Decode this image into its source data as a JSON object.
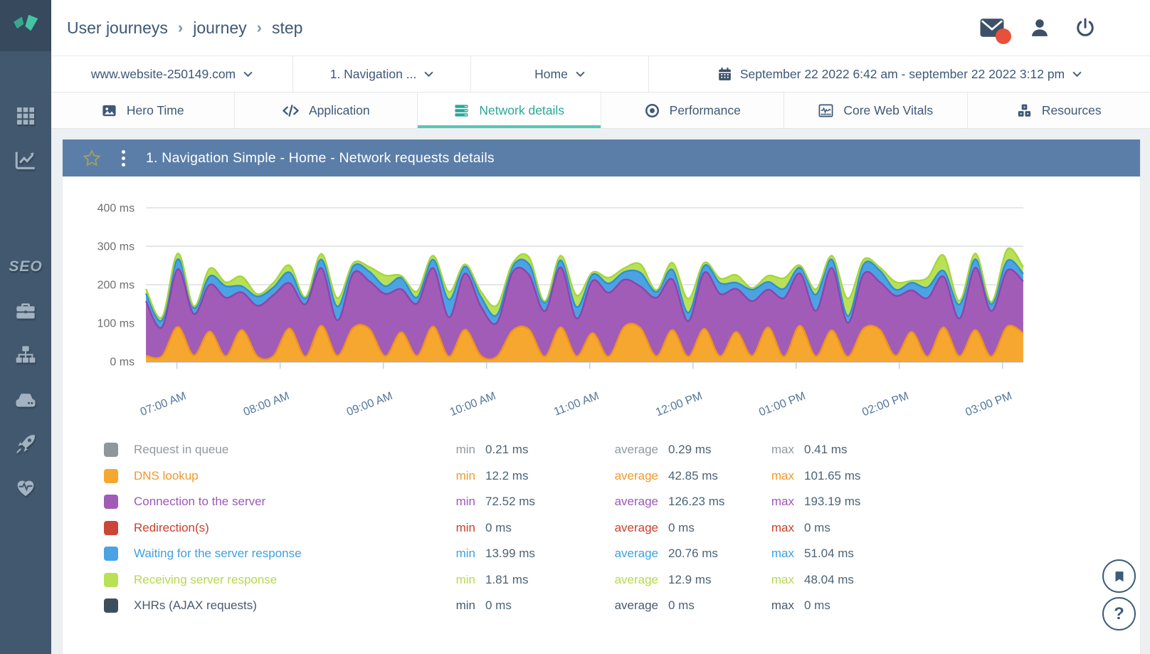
{
  "breadcrumb": {
    "items": [
      "User journeys",
      "journey",
      "step"
    ],
    "separator": "›"
  },
  "sidebar": {
    "seo_label": "SEO"
  },
  "filters": {
    "website": "www.website-250149.com",
    "journey": "1. Navigation ...",
    "step": "Home",
    "daterange": "September 22 2022 6:42 am - september 22 2022 3:12 pm"
  },
  "tabs": [
    {
      "label": "Hero Time",
      "active": false
    },
    {
      "label": "Application",
      "active": false
    },
    {
      "label": "Network details",
      "active": true
    },
    {
      "label": "Performance",
      "active": false
    },
    {
      "label": "Core Web Vitals",
      "active": false
    },
    {
      "label": "Resources",
      "active": false
    }
  ],
  "panel": {
    "title": "1. Navigation Simple - Home - Network requests details"
  },
  "chart_data": {
    "type": "area",
    "stacked": true,
    "title": "Network requests details",
    "y_unit": "ms",
    "ylim": [
      0,
      400
    ],
    "y_ticks": [
      0,
      100,
      200,
      300,
      400
    ],
    "x_range_minutes": [
      0,
      510
    ],
    "x_tick_minutes": [
      18,
      78,
      138,
      198,
      258,
      318,
      378,
      438,
      498
    ],
    "x_ticks": [
      "07:00 AM",
      "08:00 AM",
      "09:00 AM",
      "10:00 AM",
      "11:00 AM",
      "12:00 PM",
      "01:00 PM",
      "02:00 PM",
      "03:00 PM"
    ],
    "grid": true,
    "legend_position": "bottom",
    "series": [
      {
        "name": "Request in queue",
        "color": "#8d979c",
        "stroke": "#7e8a90",
        "values": 0.3
      },
      {
        "name": "DNS lookup",
        "color": "#f6a72f",
        "stroke": "#ef9418",
        "values": [
          15,
          14,
          90,
          16,
          78,
          14,
          82,
          13,
          15,
          86,
          13,
          93,
          15,
          88,
          85,
          14,
          76,
          15,
          91,
          13,
          83,
          15,
          13,
          81,
          84,
          13,
          89,
          14,
          74,
          13,
          91,
          87,
          14,
          82,
          13,
          85,
          14,
          77,
          15,
          89,
          13,
          93,
          14,
          81,
          13,
          86,
          83,
          15,
          77,
          13,
          89,
          14,
          82,
          13,
          91,
          74
        ]
      },
      {
        "name": "Connection to the server",
        "color": "#a15cb7",
        "stroke": "#8f43ab",
        "values": [
          142,
          75,
          150,
          108,
          122,
          152,
          98,
          132,
          158,
          118,
          136,
          150,
          92,
          142,
          124,
          162,
          112,
          136,
          152,
          102,
          146,
          128,
          88,
          152,
          142,
          118,
          156,
          98,
          136,
          166,
          122,
          108,
          152,
          132,
          92,
          146,
          162,
          112,
          142,
          98,
          152,
          136,
          118,
          162,
          88,
          142,
          124,
          156,
          108,
          152,
          132,
          98,
          162,
          118,
          146,
          134
        ]
      },
      {
        "name": "Redirection(s)",
        "color": "#cb4538",
        "stroke": "#b93a2e",
        "values": 0
      },
      {
        "name": "Waiting for the server response",
        "color": "#4ba3e3",
        "stroke": "#2e8fd5",
        "values": [
          20,
          18,
          26,
          15,
          22,
          30,
          16,
          24,
          20,
          28,
          15,
          22,
          36,
          18,
          25,
          20,
          30,
          16,
          22,
          46,
          18,
          25,
          20,
          15,
          28,
          22,
          18,
          30,
          16,
          24,
          20,
          36,
          15,
          25,
          22,
          18,
          28,
          16,
          30,
          20,
          24,
          15,
          42,
          22,
          18,
          25,
          30,
          16,
          20,
          28,
          15,
          36,
          22,
          18,
          25,
          20
        ]
      },
      {
        "name": "Receiving server response",
        "color": "#b9e156",
        "stroke": "#a5d63e",
        "values": [
          12,
          8,
          15,
          5,
          20,
          10,
          25,
          6,
          12,
          18,
          4,
          15,
          22,
          8,
          12,
          28,
          5,
          16,
          10,
          20,
          6,
          14,
          25,
          8,
          18,
          4,
          12,
          30,
          6,
          15,
          10,
          22,
          5,
          18,
          36,
          8,
          12,
          20,
          4,
          16,
          28,
          6,
          14,
          10,
          45,
          12,
          8,
          20,
          5,
          25,
          40,
          10,
          15,
          6,
          30,
          18
        ]
      },
      {
        "name": "XHRs (AJAX requests)",
        "color": "#3e4e5c",
        "stroke": "#32404c",
        "values": 0
      }
    ]
  },
  "legend": {
    "stat_labels": {
      "min": "min",
      "average": "average",
      "max": "max"
    },
    "rows": [
      {
        "label": "Request in queue",
        "swatch": "#8d979c",
        "label_color": "#90999e",
        "min": "0.21 ms",
        "average": "0.29 ms",
        "max": "0.41 ms"
      },
      {
        "label": "DNS lookup",
        "swatch": "#f6a72f",
        "label_color": "#f0992b",
        "min": "12.2 ms",
        "average": "42.85 ms",
        "max": "101.65 ms"
      },
      {
        "label": "Connection to the server",
        "swatch": "#a15cb7",
        "label_color": "#9c59b8",
        "min": "72.52 ms",
        "average": "126.23 ms",
        "max": "193.19 ms"
      },
      {
        "label": "Redirection(s)",
        "swatch": "#cb4538",
        "label_color": "#c8402f",
        "min": "0 ms",
        "average": "0 ms",
        "max": "0 ms"
      },
      {
        "label": "Waiting for the server response",
        "swatch": "#4ba3e3",
        "label_color": "#3da0e3",
        "min": "13.99 ms",
        "average": "20.76 ms",
        "max": "51.04 ms"
      },
      {
        "label": "Receiving server response",
        "swatch": "#b9e156",
        "label_color": "#b5d94e",
        "min": "1.81 ms",
        "average": "12.9 ms",
        "max": "48.04 ms"
      },
      {
        "label": "XHRs (AJAX requests)",
        "swatch": "#3e4e5c",
        "label_color": "#4a5a6a",
        "min": "0 ms",
        "average": "0 ms",
        "max": "0 ms"
      }
    ]
  },
  "fabs": {
    "help_label": "?"
  }
}
